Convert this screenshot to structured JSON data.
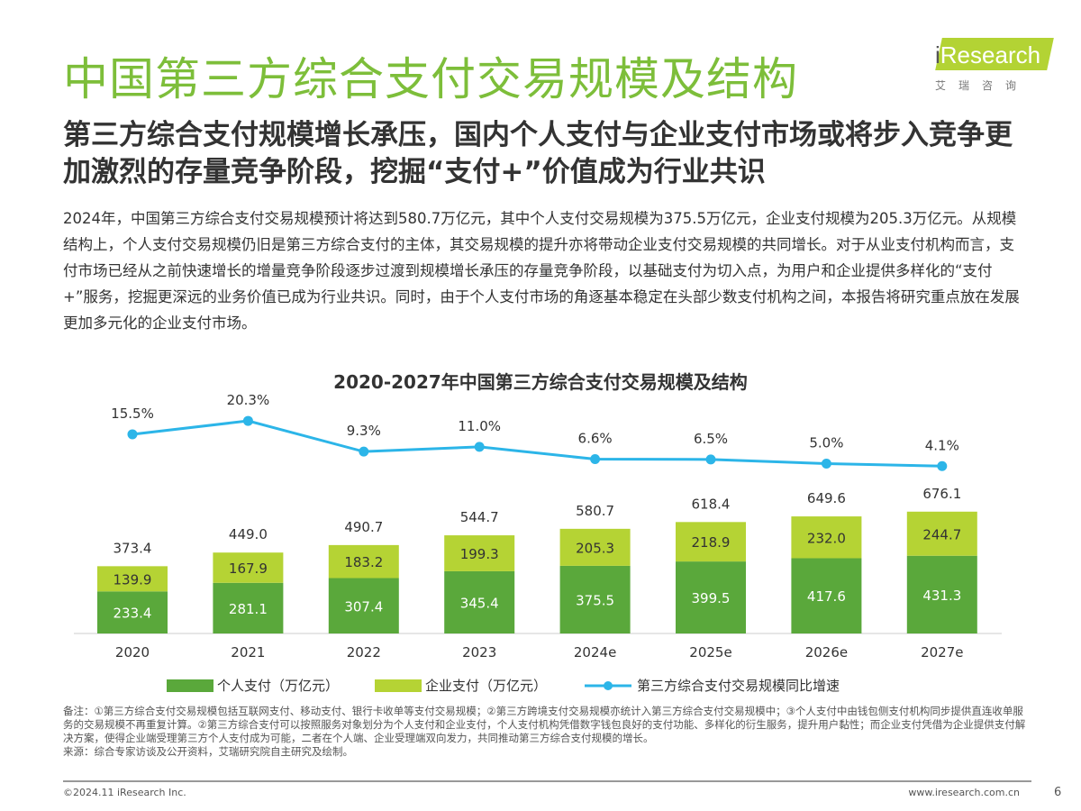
{
  "title": "中国第三方综合支付交易规模及结构",
  "logo": {
    "i": "i",
    "word": "Research",
    "cn": "艾瑞咨询"
  },
  "subtitle": "第三方综合支付规模增长承压，国内个人支付与企业支付市场或将步入竞争更加激烈的存量竞争阶段，挖掘“支付+”价值成为行业共识",
  "body": "2024年，中国第三方综合支付交易规模预计将达到580.7万亿元，其中个人支付交易规模为375.5万亿元，企业支付规模为205.3万亿元。从规模结构上，个人支付交易规模仍旧是第三方综合支付的主体，其交易规模的提升亦将带动企业支付交易规模的共同增长。对于从业支付机构而言，支付市场已经从之前快速增长的增量竞争阶段逐步过渡到规模增长承压的存量竞争阶段，以基础支付为切入点，为用户和企业提供多样化的“支付+”服务，挖掘更深远的业务价值已成为行业共识。同时，由于个人支付市场的角逐基本稳定在头部少数支付机构之间，本报告将研究重点放在发展更加多元化的企业支付市场。",
  "chart_data": {
    "type": "bar",
    "title": "2020-2027年中国第三方综合支付交易规模及结构",
    "categories": [
      "2020",
      "2021",
      "2022",
      "2023",
      "2024e",
      "2025e",
      "2026e",
      "2027e"
    ],
    "series": [
      {
        "name": "个人支付（万亿元）",
        "type": "bar",
        "stack": true,
        "color": "#5aa83b",
        "values": [
          233.4,
          281.1,
          307.4,
          345.4,
          375.5,
          399.5,
          417.6,
          431.3
        ]
      },
      {
        "name": "企业支付（万亿元）",
        "type": "bar",
        "stack": true,
        "color": "#b5d334",
        "values": [
          139.9,
          167.9,
          183.2,
          199.3,
          205.3,
          218.9,
          232.0,
          244.7
        ]
      },
      {
        "name": "第三方综合支付交易规模同比增速",
        "type": "line",
        "color": "#2cb5e8",
        "values": [
          15.5,
          20.3,
          9.3,
          11.0,
          6.6,
          6.5,
          5.0,
          4.1
        ],
        "labels": [
          "15.5%",
          "20.3%",
          "9.3%",
          "11.0%",
          "6.6%",
          "6.5%",
          "5.0%",
          "4.1%"
        ]
      }
    ],
    "totals": [
      "373.4",
      "449.0",
      "490.7",
      "544.7",
      "580.7",
      "618.4",
      "649.6",
      "676.1"
    ],
    "legend_position": "bottom"
  },
  "notes": "备注：①第三方综合支付交易规模包括互联网支付、移动支付、银行卡收单等支付交易规模；②第三方跨境支付交易规模亦统计入第三方综合支付交易规模中；③个人支付中由钱包侧支付机构同步提供直连收单服务的交易规模不再重复计算。②第三方综合支付可以按照服务对象划分为个人支付和企业支付，个人支付机构凭借数字钱包良好的支付功能、多样化的衍生服务，提升用户黏性；而企业支付凭借为企业提供支付解决方案，使得企业端受理第三方个人支付成为可能，二者在个人端、企业受理端双向发力，共同推动第三方综合支付规模的增长。",
  "source": "来源：综合专家访谈及公开资料，艾瑞研究院自主研究及绘制。",
  "footer": {
    "copyright": "©2024.11 iResearch Inc.",
    "url": "www.iresearch.com.cn",
    "page": "6"
  }
}
